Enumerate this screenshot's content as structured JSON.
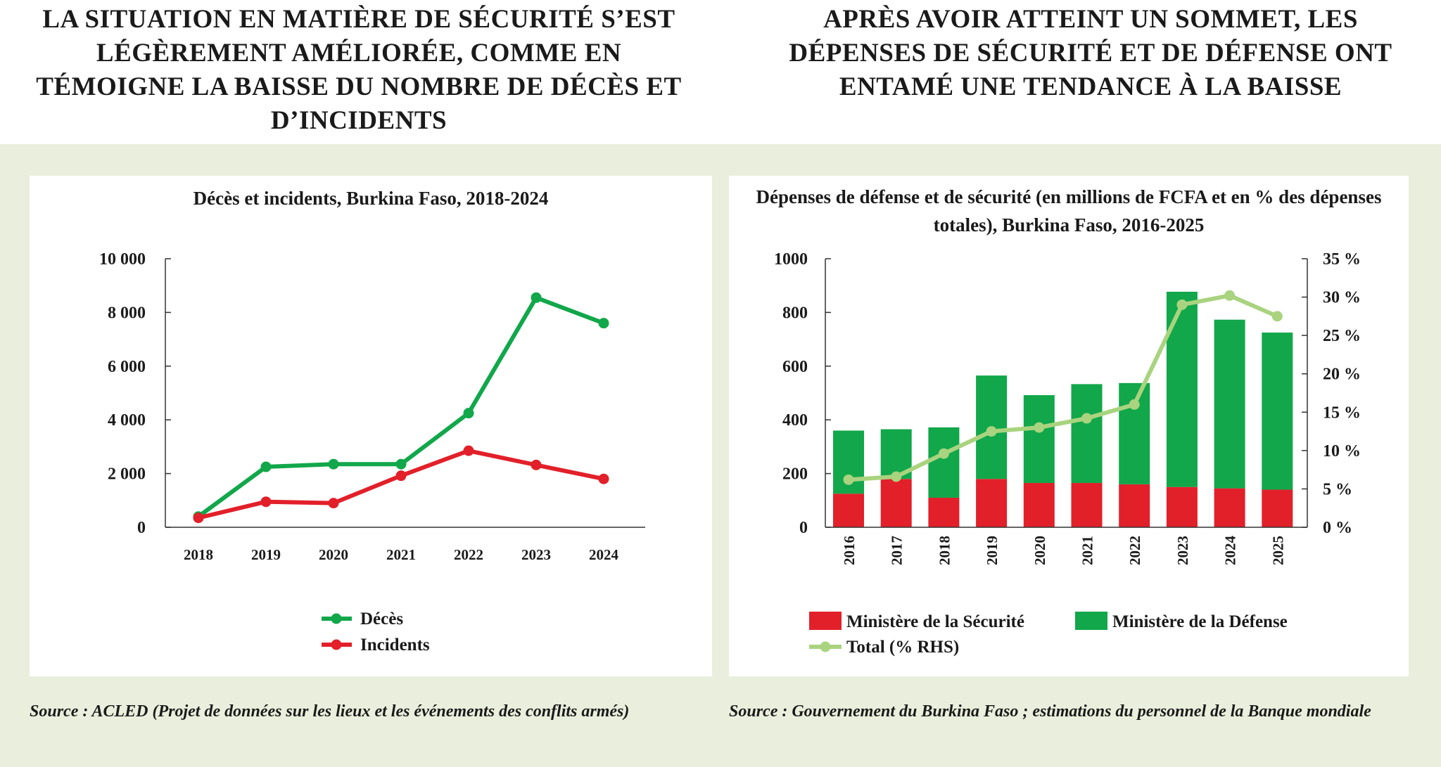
{
  "left": {
    "heading": "LA SITUATION EN MATIÈRE DE SÉCURITÉ S’EST LÉGÈREMENT AMÉLIORÉE, COMME EN TÉMOIGNE LA BAISSE DU NOMBRE DE DÉCÈS ET D’INCIDENTS",
    "source": "Source : ACLED (Projet de données sur les lieux et les événements des conflits armés)"
  },
  "right": {
    "heading": "APRÈS AVOIR ATTEINT UN SOMMET, LES DÉPENSES DE SÉCURITÉ ET DE DÉFENSE ONT ENTAMÉ UNE TENDANCE À LA BAISSE",
    "source": "Source : Gouvernement du Burkina Faso ; estimations du personnel de la Banque mondiale"
  },
  "chart_data": [
    {
      "type": "line",
      "title": "Décès et incidents, Burkina Faso, 2018-2024",
      "x": [
        "2018",
        "2019",
        "2020",
        "2021",
        "2022",
        "2023",
        "2024"
      ],
      "ylim": [
        0,
        10000
      ],
      "yticks": [
        "0",
        "2 000",
        "4 000",
        "6 000",
        "8 000",
        "10 000"
      ],
      "ytick_values": [
        0,
        2000,
        4000,
        6000,
        8000,
        10000
      ],
      "legend_position": "bottom",
      "series": [
        {
          "name": "Décès",
          "color": "#11a74a",
          "values": [
            400,
            2250,
            2350,
            2350,
            4250,
            8550,
            7600
          ]
        },
        {
          "name": "Incidents",
          "color": "#e2202a",
          "values": [
            350,
            950,
            900,
            1920,
            2850,
            2320,
            1800
          ]
        }
      ]
    },
    {
      "type": "bar",
      "stacked": true,
      "title": "Dépenses de défense et de sécurité (en millions de FCFA et en % des dépenses totales), Burkina Faso, 2016-2025",
      "categories": [
        "2016",
        "2017",
        "2018",
        "2019",
        "2020",
        "2021",
        "2022",
        "2023",
        "2024",
        "2025"
      ],
      "ylim": [
        0,
        1000
      ],
      "yticks": [
        "0",
        "200",
        "400",
        "600",
        "800",
        "1000"
      ],
      "ytick_values": [
        0,
        200,
        400,
        600,
        800,
        1000
      ],
      "y2lim": [
        0,
        35
      ],
      "y2ticks": [
        "0 %",
        "5 %",
        "10 %",
        "15 %",
        "20 %",
        "25 %",
        "30 %",
        "35 %"
      ],
      "y2tick_values": [
        0,
        5,
        10,
        15,
        20,
        25,
        30,
        35
      ],
      "legend_position": "bottom",
      "series": [
        {
          "name": "Ministère de la Sécurité",
          "color": "#e2202a",
          "values": [
            125,
            180,
            110,
            180,
            165,
            165,
            160,
            150,
            145,
            140
          ]
        },
        {
          "name": "Ministère de la Défense",
          "color": "#11a74a",
          "values": [
            235,
            185,
            262,
            385,
            327,
            368,
            377,
            727,
            628,
            585
          ]
        },
        {
          "name": "Total (% RHS)",
          "color": "#a9d37f",
          "axis": "right",
          "type": "line",
          "values": [
            6.2,
            6.6,
            9.6,
            12.5,
            13.0,
            14.2,
            16.0,
            29.0,
            30.2,
            27.5
          ]
        }
      ]
    }
  ]
}
